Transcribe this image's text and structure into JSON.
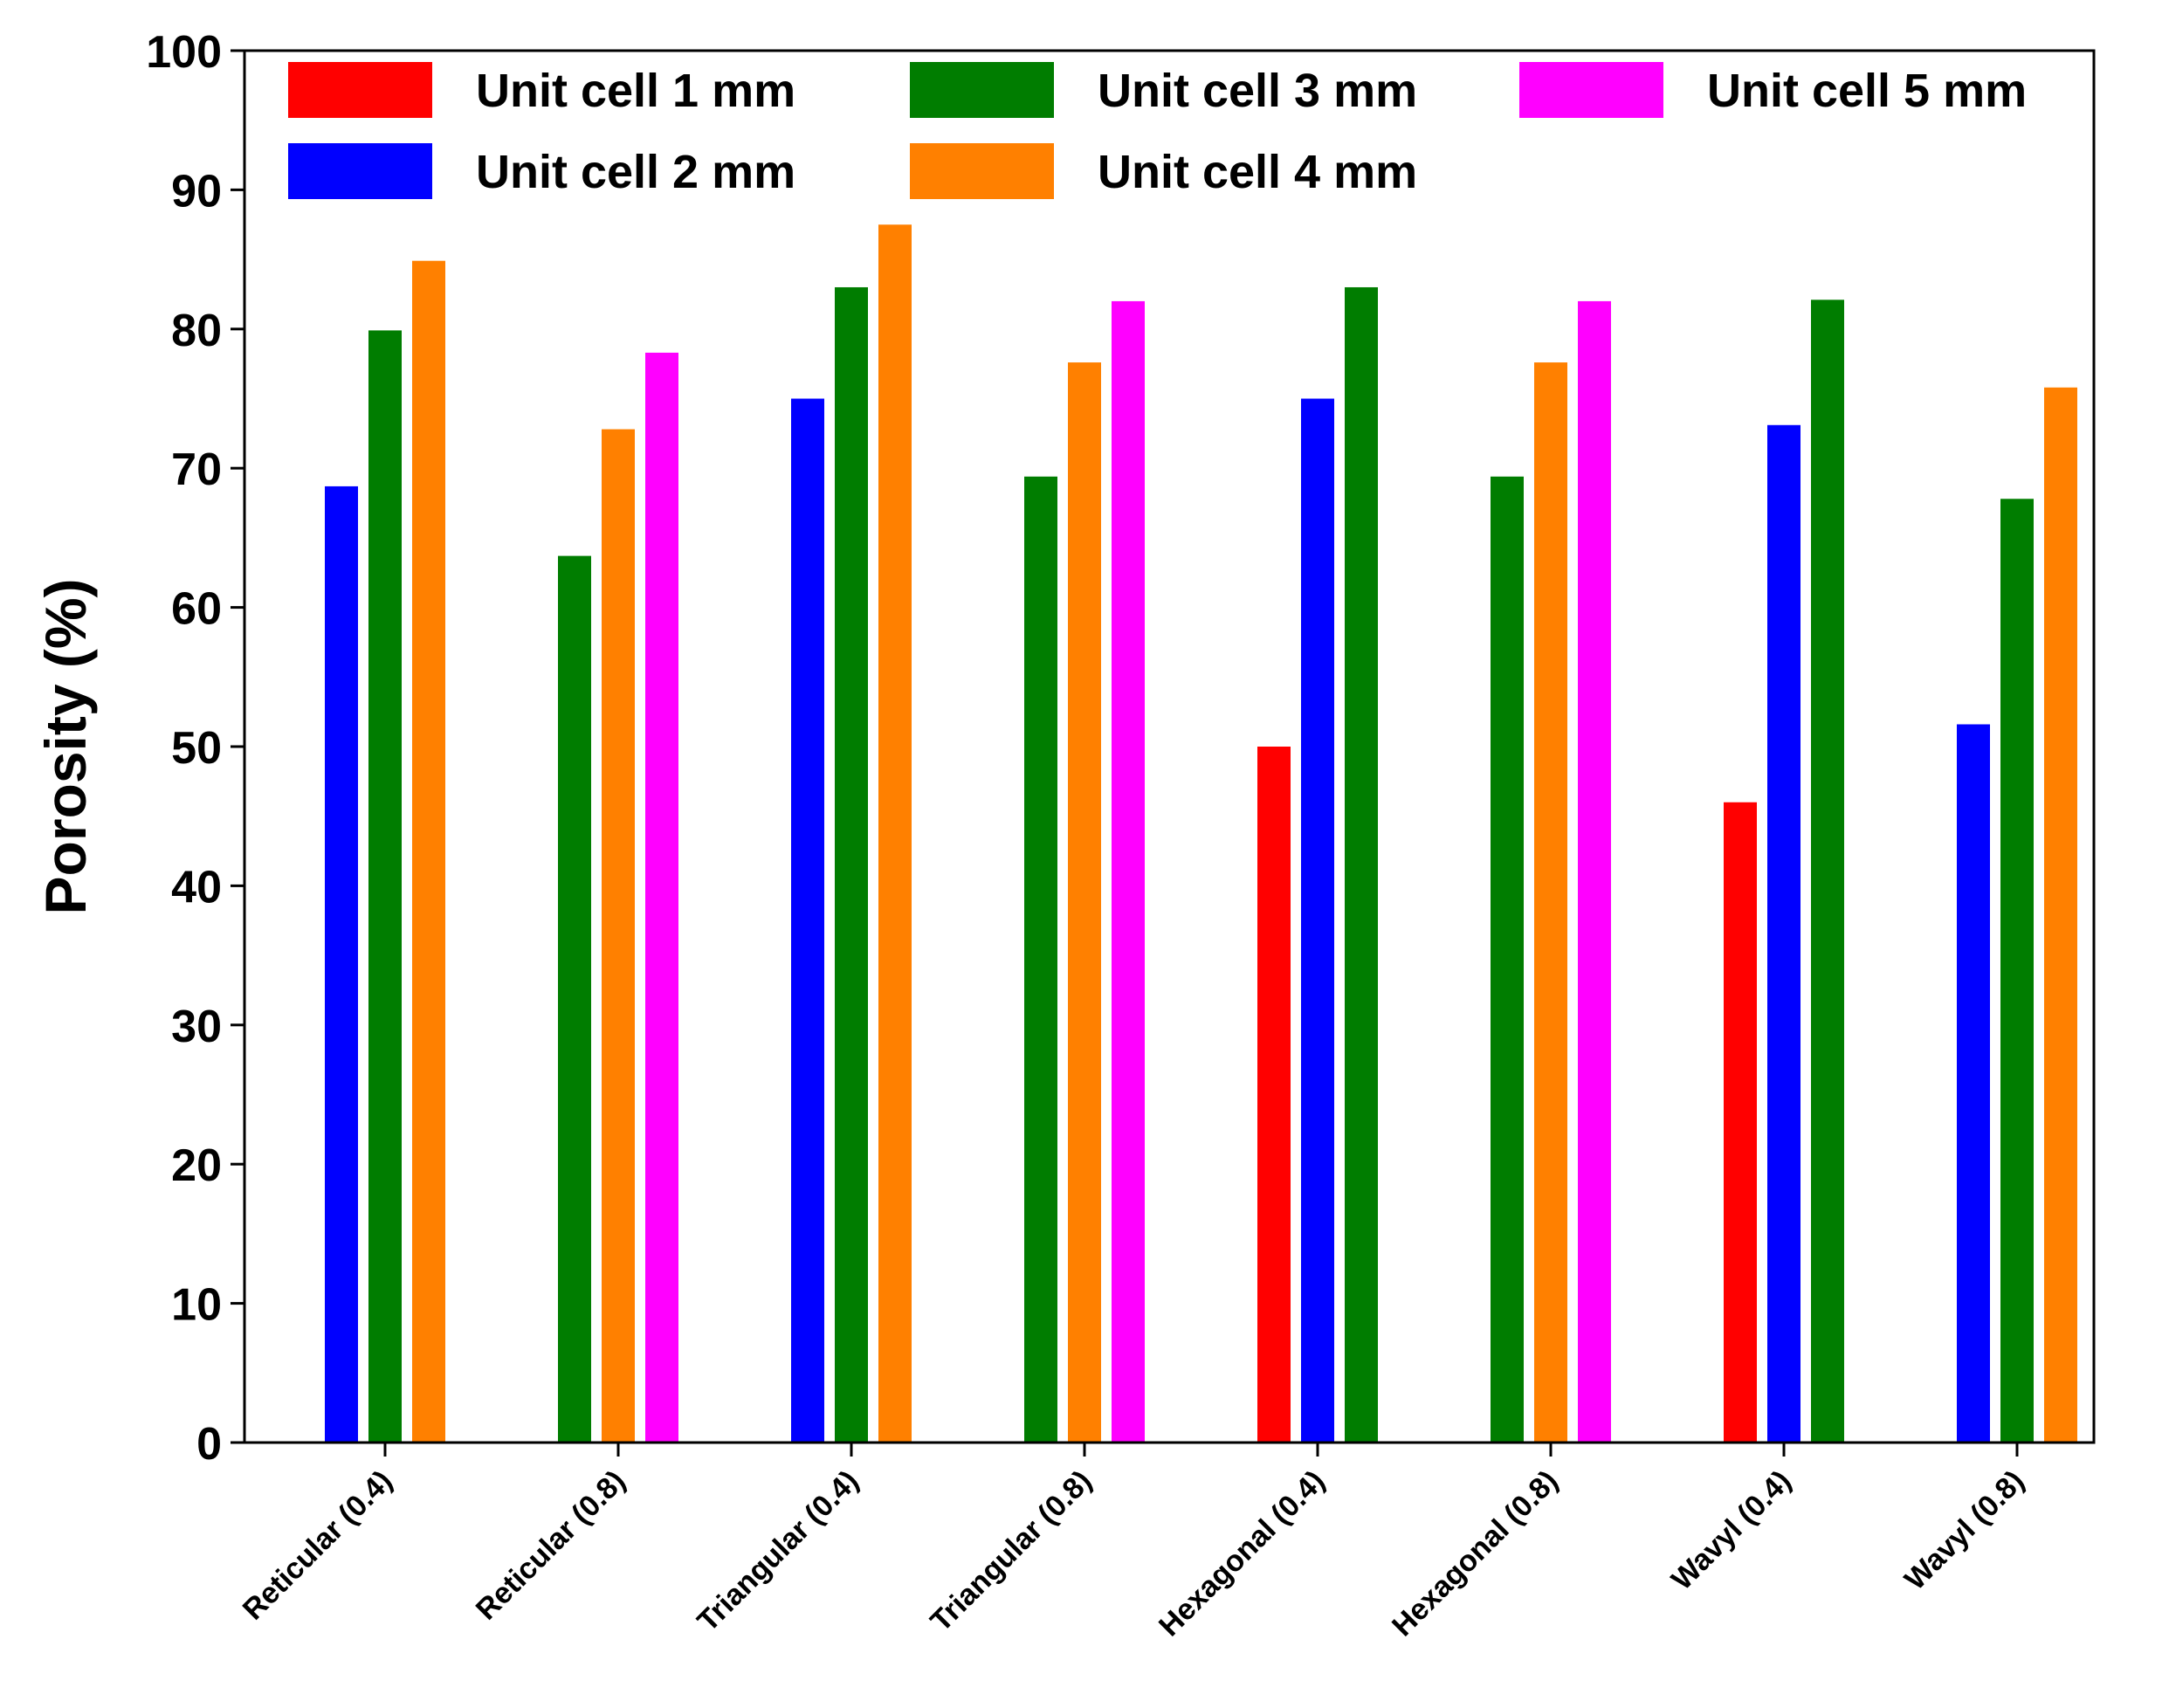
{
  "chart_data": {
    "type": "bar",
    "title": "",
    "xlabel": "",
    "ylabel": "Porosity (%)",
    "ylim": [
      0,
      100
    ],
    "yticks": [
      0,
      10,
      20,
      30,
      40,
      50,
      60,
      70,
      80,
      90,
      100
    ],
    "grid": false,
    "legend_position": "top",
    "categories": [
      "Reticular (0.4)",
      "Reticular (0.8)",
      "Triangular (0.4)",
      "Triangular (0.8)",
      "Hexagonal (0.4)",
      "Hexagonal (0.8)",
      "Wavyl (0.4)",
      "Wavyl (0.8)"
    ],
    "series": [
      {
        "name": "Unit cell 1 mm",
        "color": "#ff0000",
        "values": [
          null,
          null,
          null,
          null,
          50,
          null,
          46,
          null
        ]
      },
      {
        "name": "Unit cell 2 mm",
        "color": "#0000ff",
        "values": [
          68.7,
          null,
          75,
          null,
          75,
          null,
          73.1,
          51.6
        ]
      },
      {
        "name": "Unit cell 3 mm",
        "color": "#007d00",
        "values": [
          79.9,
          63.7,
          83,
          69.4,
          83,
          69.4,
          82.1,
          67.8
        ]
      },
      {
        "name": "Unit cell 4 mm",
        "color": "#ff8000",
        "values": [
          84.9,
          72.8,
          87.5,
          77.6,
          null,
          77.6,
          null,
          75.8
        ]
      },
      {
        "name": "Unit cell 5 mm",
        "color": "#ff00ff",
        "values": [
          null,
          78.3,
          null,
          82,
          null,
          82,
          null,
          null
        ]
      }
    ]
  }
}
